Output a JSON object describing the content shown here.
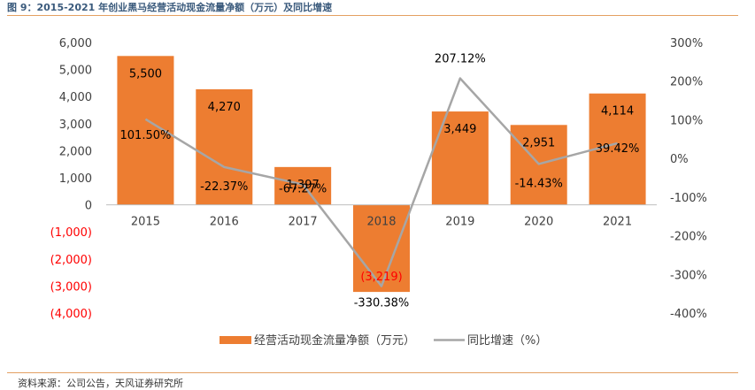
{
  "figure": {
    "title": "图 9：2015-2021 年创业黑马经营活动现金流量净额（万元）及同比增速",
    "source": "资料来源：公司公告，天风证券研究所"
  },
  "chart_data": {
    "type": "bar",
    "categories": [
      "2015",
      "2016",
      "2017",
      "2018",
      "2019",
      "2020",
      "2021"
    ],
    "series": [
      {
        "name": "经营活动现金流量净额（万元）",
        "type": "bar",
        "axis": "left",
        "color": "#ed7d31",
        "values": [
          5500,
          4270,
          1397,
          -3219,
          3449,
          2951,
          4114
        ],
        "labels": [
          "5,500",
          "4,270",
          "1,397",
          "(3,219)",
          "3,449",
          "2,951",
          "4,114"
        ]
      },
      {
        "name": "同比增速（%）",
        "type": "line",
        "axis": "right",
        "color": "#a6a6a6",
        "values": [
          101.5,
          -22.37,
          -67.27,
          -330.38,
          207.12,
          -14.43,
          39.42
        ],
        "labels": [
          "101.50%",
          "-22.37%",
          "-67.27%",
          "-330.38%",
          "207.12%",
          "-14.43%",
          "39.42%"
        ]
      }
    ],
    "y_left": {
      "min": -4000,
      "max": 6000,
      "ticks": [
        "6,000",
        "5,000",
        "4,000",
        "3,000",
        "2,000",
        "1,000",
        "0",
        "(1,000)",
        "(2,000)",
        "(3,000)",
        "(4,000)"
      ],
      "tick_values": [
        6000,
        5000,
        4000,
        3000,
        2000,
        1000,
        0,
        -1000,
        -2000,
        -3000,
        -4000
      ],
      "negative_color": "#ff0000"
    },
    "y_right": {
      "min": -400,
      "max": 300,
      "ticks": [
        "300%",
        "200%",
        "100%",
        "0%",
        "-100%",
        "-200%",
        "-300%",
        "-400%"
      ],
      "tick_values": [
        300,
        200,
        100,
        0,
        -100,
        -200,
        -300,
        -400
      ]
    },
    "grid": false,
    "legend_position": "bottom"
  }
}
